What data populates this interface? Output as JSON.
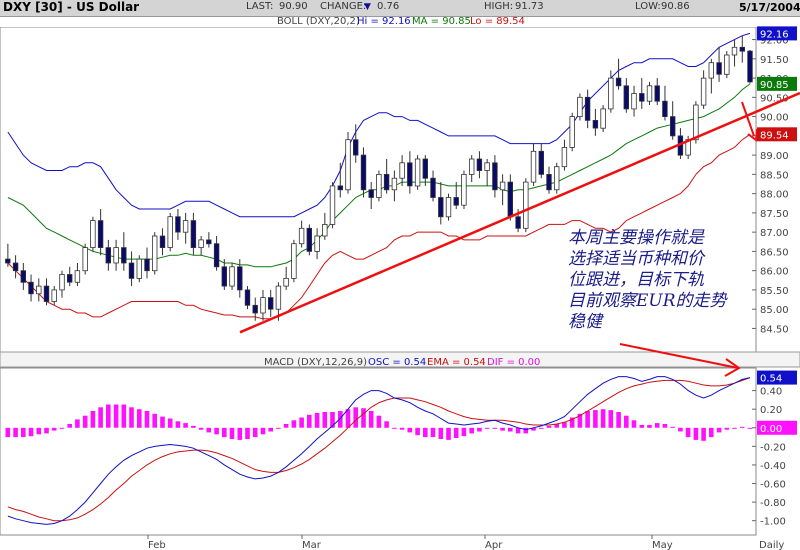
{
  "header": {
    "symbol": "DXY [30] - US Dollar",
    "last_label": "LAST:",
    "last_value": "90.90",
    "change_label": "CHANGE:",
    "change_arrow": "▼",
    "change_value": "0.76",
    "high_label": "HIGH:",
    "high_value": "91.73",
    "low_label": "LOW:",
    "low_value": "90.86",
    "date": "5/17/2004"
  },
  "boll_legend": {
    "name": "BOLL (DXY,20,2)",
    "hi": "Hi = 92.16",
    "ma": "MA = 90.85",
    "lo": "Lo = 89.54"
  },
  "macd_legend": {
    "name": "MACD (DXY,12,26,9)",
    "osc": "OSC = 0.54",
    "ema": "EMA = 0.54",
    "dif": "DIF = 0.00"
  },
  "annotation": "本周主要操作就是\n选择适当币种和价\n位跟进，目标下轨\n目前观察EUR的走势\n稳健",
  "colors": {
    "up_candle": "#ffffff",
    "down_candle": "#0a0a6a",
    "upper_band": "#1010c8",
    "middle_band": "#0a7a0a",
    "lower_band": "#cc1010",
    "trendline": "#ee1010",
    "macd_line": "#1010c8",
    "signal_line": "#cc1010",
    "histogram": "#ff10ff"
  },
  "chart_data": [
    {
      "type": "candlestick",
      "title": "DXY [30] - US Dollar",
      "x_ticks": [
        "Feb",
        "Mar",
        "Apr",
        "May",
        "Daily"
      ],
      "y_ticks": [
        "84.50",
        "85.00",
        "85.50",
        "86.00",
        "86.50",
        "87.00",
        "87.50",
        "88.00",
        "88.50",
        "89.00",
        "89.50",
        "90.00",
        "90.50",
        "91.00",
        "91.50",
        "92.00"
      ],
      "ylim": [
        84.2,
        92.3
      ],
      "price_tags": [
        {
          "label": "92.16",
          "value": 92.16,
          "color": "#1010c8"
        },
        {
          "label": "90.85",
          "value": 90.85,
          "color": "#0a7a0a"
        },
        {
          "label": "89.54",
          "value": 89.54,
          "color": "#cc1010"
        }
      ],
      "ohlc": [
        [
          86.3,
          86.7,
          86.1,
          86.2
        ],
        [
          86.2,
          86.4,
          85.8,
          86.0
        ],
        [
          86.0,
          86.2,
          85.5,
          85.7
        ],
        [
          85.7,
          85.9,
          85.2,
          85.4
        ],
        [
          85.4,
          85.8,
          85.2,
          85.6
        ],
        [
          85.6,
          85.8,
          85.1,
          85.2
        ],
        [
          85.2,
          85.6,
          85.1,
          85.5
        ],
        [
          85.5,
          86.0,
          85.3,
          85.9
        ],
        [
          85.9,
          86.1,
          85.6,
          85.7
        ],
        [
          85.7,
          86.2,
          85.6,
          86.0
        ],
        [
          86.0,
          86.7,
          85.9,
          86.6
        ],
        [
          86.6,
          87.4,
          86.5,
          87.3
        ],
        [
          87.3,
          87.6,
          86.4,
          86.6
        ],
        [
          86.6,
          86.8,
          86.0,
          86.2
        ],
        [
          86.2,
          86.8,
          86.0,
          86.6
        ],
        [
          86.6,
          87.0,
          86.0,
          86.2
        ],
        [
          86.2,
          86.5,
          85.6,
          85.8
        ],
        [
          85.8,
          86.4,
          85.7,
          86.3
        ],
        [
          86.3,
          86.6,
          85.8,
          86.0
        ],
        [
          86.0,
          87.0,
          85.9,
          86.9
        ],
        [
          86.9,
          87.1,
          86.4,
          86.6
        ],
        [
          86.6,
          87.5,
          86.5,
          87.4
        ],
        [
          87.4,
          87.6,
          86.8,
          87.0
        ],
        [
          87.0,
          87.5,
          86.7,
          87.3
        ],
        [
          87.3,
          87.5,
          86.4,
          86.6
        ],
        [
          86.6,
          86.9,
          86.4,
          86.8
        ],
        [
          86.8,
          87.0,
          86.6,
          86.7
        ],
        [
          86.7,
          86.9,
          86.0,
          86.1
        ],
        [
          86.1,
          86.3,
          85.5,
          85.6
        ],
        [
          85.6,
          86.2,
          85.5,
          86.1
        ],
        [
          86.1,
          86.3,
          85.3,
          85.5
        ],
        [
          85.5,
          85.6,
          85.0,
          85.1
        ],
        [
          85.1,
          85.3,
          84.7,
          84.9
        ],
        [
          84.9,
          85.5,
          84.7,
          85.3
        ],
        [
          85.3,
          85.5,
          84.8,
          85.0
        ],
        [
          85.0,
          85.7,
          84.7,
          85.6
        ],
        [
          85.6,
          86.1,
          85.5,
          85.8
        ],
        [
          85.8,
          86.8,
          85.7,
          86.7
        ],
        [
          86.7,
          87.3,
          86.6,
          87.1
        ],
        [
          87.1,
          87.2,
          86.4,
          86.5
        ],
        [
          86.5,
          87.1,
          86.3,
          86.9
        ],
        [
          86.9,
          87.5,
          86.8,
          87.2
        ],
        [
          87.2,
          88.3,
          87.1,
          88.2
        ],
        [
          88.2,
          88.8,
          87.9,
          88.1
        ],
        [
          88.1,
          89.6,
          88.0,
          89.4
        ],
        [
          89.4,
          89.8,
          88.8,
          89.0
        ],
        [
          89.0,
          89.2,
          87.9,
          88.1
        ],
        [
          88.1,
          88.3,
          87.6,
          87.9
        ],
        [
          87.9,
          88.6,
          87.8,
          88.5
        ],
        [
          88.5,
          88.9,
          88.0,
          88.1
        ],
        [
          88.1,
          88.6,
          87.8,
          88.4
        ],
        [
          88.4,
          89.0,
          88.2,
          88.8
        ],
        [
          88.8,
          89.1,
          88.0,
          88.2
        ],
        [
          88.2,
          89.0,
          88.1,
          88.9
        ],
        [
          88.9,
          89.0,
          88.2,
          88.4
        ],
        [
          88.4,
          88.6,
          87.8,
          87.9
        ],
        [
          87.9,
          88.3,
          87.2,
          87.4
        ],
        [
          87.4,
          88.0,
          87.3,
          87.9
        ],
        [
          87.9,
          88.3,
          87.6,
          87.7
        ],
        [
          87.7,
          88.6,
          87.6,
          88.5
        ],
        [
          88.5,
          89.0,
          88.3,
          88.9
        ],
        [
          88.9,
          89.1,
          88.4,
          88.6
        ],
        [
          88.6,
          88.9,
          88.2,
          88.8
        ],
        [
          88.8,
          89.0,
          87.9,
          88.1
        ],
        [
          88.1,
          88.5,
          87.7,
          88.3
        ],
        [
          88.3,
          88.5,
          87.3,
          87.4
        ],
        [
          87.4,
          87.6,
          87.0,
          87.1
        ],
        [
          87.1,
          88.4,
          87.0,
          88.3
        ],
        [
          88.3,
          89.3,
          88.2,
          89.1
        ],
        [
          89.1,
          89.3,
          88.4,
          88.5
        ],
        [
          88.5,
          88.7,
          88.0,
          88.1
        ],
        [
          88.1,
          88.8,
          88.0,
          88.7
        ],
        [
          88.7,
          89.4,
          88.6,
          89.2
        ],
        [
          89.2,
          90.1,
          89.1,
          90.0
        ],
        [
          90.0,
          90.6,
          89.9,
          90.5
        ],
        [
          90.5,
          90.7,
          89.7,
          89.9
        ],
        [
          89.9,
          90.2,
          89.5,
          89.7
        ],
        [
          89.7,
          90.3,
          89.6,
          90.2
        ],
        [
          90.2,
          91.2,
          90.1,
          91.0
        ],
        [
          91.0,
          91.5,
          90.7,
          90.8
        ],
        [
          90.8,
          91.0,
          90.1,
          90.2
        ],
        [
          90.2,
          90.8,
          90.0,
          90.6
        ],
        [
          90.6,
          91.0,
          90.2,
          90.4
        ],
        [
          90.4,
          90.9,
          90.3,
          90.8
        ],
        [
          90.8,
          91.0,
          90.3,
          90.4
        ],
        [
          90.4,
          90.8,
          89.9,
          90.0
        ],
        [
          90.0,
          90.4,
          89.4,
          89.5
        ],
        [
          89.5,
          89.7,
          88.9,
          89.0
        ],
        [
          89.0,
          89.5,
          88.9,
          89.4
        ],
        [
          89.4,
          90.4,
          89.3,
          90.3
        ],
        [
          90.3,
          91.2,
          90.2,
          91.0
        ],
        [
          91.0,
          91.5,
          90.6,
          91.4
        ],
        [
          91.4,
          91.8,
          90.9,
          91.1
        ],
        [
          91.1,
          91.7,
          91.0,
          91.6
        ],
        [
          91.6,
          92.0,
          91.3,
          91.8
        ],
        [
          91.8,
          92.1,
          91.4,
          91.7
        ],
        [
          91.7,
          91.73,
          90.86,
          90.9
        ]
      ],
      "bollinger": {
        "upper": [
          89.6,
          89.3,
          89.0,
          88.8,
          88.7,
          88.6,
          88.6,
          88.6,
          88.7,
          88.7,
          88.8,
          88.8,
          88.7,
          88.4,
          88.1,
          87.9,
          87.7,
          87.6,
          87.6,
          87.6,
          87.6,
          87.6,
          87.7,
          87.8,
          87.8,
          87.8,
          87.8,
          87.7,
          87.6,
          87.5,
          87.4,
          87.4,
          87.4,
          87.4,
          87.4,
          87.4,
          87.4,
          87.4,
          87.5,
          87.6,
          87.7,
          87.9,
          88.2,
          88.6,
          89.2,
          89.6,
          89.9,
          90.0,
          90.1,
          90.1,
          90.0,
          90.0,
          89.9,
          89.9,
          89.8,
          89.7,
          89.6,
          89.5,
          89.5,
          89.5,
          89.5,
          89.5,
          89.5,
          89.5,
          89.4,
          89.3,
          89.3,
          89.3,
          89.3,
          89.3,
          89.3,
          89.4,
          89.6,
          89.8,
          90.1,
          90.4,
          90.6,
          90.8,
          91.0,
          91.2,
          91.3,
          91.4,
          91.4,
          91.5,
          91.5,
          91.5,
          91.5,
          91.4,
          91.3,
          91.3,
          91.4,
          91.6,
          91.8,
          91.9,
          92.0,
          92.1,
          92.16
        ],
        "middle": [
          87.9,
          87.8,
          87.7,
          87.5,
          87.3,
          87.1,
          87.0,
          86.9,
          86.8,
          86.7,
          86.6,
          86.5,
          86.45,
          86.4,
          86.35,
          86.3,
          86.3,
          86.3,
          86.3,
          86.3,
          86.35,
          86.4,
          86.4,
          86.45,
          86.4,
          86.4,
          86.35,
          86.3,
          86.2,
          86.2,
          86.15,
          86.15,
          86.1,
          86.1,
          86.1,
          86.15,
          86.2,
          86.3,
          86.5,
          86.6,
          86.8,
          87.0,
          87.3,
          87.5,
          87.7,
          87.9,
          88.0,
          88.1,
          88.1,
          88.2,
          88.2,
          88.3,
          88.3,
          88.3,
          88.3,
          88.3,
          88.25,
          88.2,
          88.2,
          88.2,
          88.2,
          88.2,
          88.2,
          88.2,
          88.1,
          88.05,
          88.1,
          88.1,
          88.15,
          88.2,
          88.25,
          88.3,
          88.4,
          88.5,
          88.6,
          88.7,
          88.8,
          88.9,
          89.0,
          89.15,
          89.3,
          89.4,
          89.5,
          89.6,
          89.7,
          89.75,
          89.8,
          89.85,
          89.9,
          89.95,
          90.0,
          90.1,
          90.2,
          90.35,
          90.5,
          90.7,
          90.85
        ],
        "lower": [
          86.2,
          86.0,
          85.8,
          85.6,
          85.4,
          85.2,
          85.1,
          85.0,
          85.0,
          84.9,
          84.9,
          84.8,
          84.8,
          84.9,
          85.0,
          85.1,
          85.2,
          85.2,
          85.2,
          85.2,
          85.2,
          85.2,
          85.2,
          85.1,
          85.1,
          85.0,
          84.95,
          84.9,
          84.85,
          84.85,
          84.8,
          84.8,
          84.8,
          84.75,
          84.75,
          84.8,
          84.9,
          85.1,
          85.3,
          85.6,
          85.9,
          86.2,
          86.4,
          86.5,
          86.4,
          86.3,
          86.3,
          86.4,
          86.5,
          86.6,
          86.8,
          86.9,
          86.9,
          87.0,
          87.0,
          87.0,
          87.0,
          86.9,
          86.9,
          86.8,
          86.8,
          86.8,
          86.9,
          86.9,
          86.9,
          86.9,
          86.9,
          86.9,
          87.0,
          87.1,
          87.2,
          87.2,
          87.2,
          87.3,
          87.3,
          87.2,
          87.1,
          87.1,
          87.0,
          87.1,
          87.3,
          87.4,
          87.5,
          87.6,
          87.7,
          87.8,
          87.9,
          88.0,
          88.2,
          88.5,
          88.7,
          88.8,
          89.0,
          89.1,
          89.2,
          89.4,
          89.54
        ]
      },
      "annotations": [
        {
          "type": "trendline",
          "from": {
            "index": 33,
            "value": 84.4
          },
          "to": {
            "index": 112,
            "value": 90.3
          }
        },
        {
          "type": "arrow",
          "label": "to lower band"
        }
      ]
    },
    {
      "type": "macd",
      "title": "MACD (DXY,12,26,9)",
      "y_ticks": [
        "-1.00",
        "-0.80",
        "-0.60",
        "-0.40",
        "-0.20",
        "0.00",
        "0.20",
        "0.40"
      ],
      "ylim": [
        -1.1,
        0.6
      ],
      "price_tags": [
        {
          "label": "0.54",
          "value": 0.54,
          "color": "#1010c8"
        },
        {
          "label": "0.00",
          "value": 0.0,
          "color": "#ff10ff"
        }
      ],
      "macd": [
        -0.95,
        -0.98,
        -1.0,
        -1.02,
        -1.03,
        -1.04,
        -1.03,
        -1.0,
        -0.95,
        -0.88,
        -0.8,
        -0.7,
        -0.6,
        -0.5,
        -0.42,
        -0.35,
        -0.3,
        -0.26,
        -0.22,
        -0.2,
        -0.19,
        -0.18,
        -0.19,
        -0.2,
        -0.22,
        -0.26,
        -0.3,
        -0.34,
        -0.4,
        -0.45,
        -0.5,
        -0.53,
        -0.55,
        -0.54,
        -0.52,
        -0.48,
        -0.42,
        -0.35,
        -0.28,
        -0.2,
        -0.12,
        -0.05,
        0.02,
        0.1,
        0.2,
        0.3,
        0.36,
        0.4,
        0.4,
        0.37,
        0.32,
        0.3,
        0.27,
        0.22,
        0.18,
        0.15,
        0.1,
        0.05,
        0.04,
        0.03,
        0.04,
        0.05,
        0.07,
        0.08,
        0.05,
        0.03,
        0.0,
        -0.02,
        0.0,
        0.02,
        0.05,
        0.08,
        0.12,
        0.2,
        0.28,
        0.36,
        0.42,
        0.48,
        0.52,
        0.55,
        0.55,
        0.53,
        0.5,
        0.52,
        0.55,
        0.55,
        0.52,
        0.47,
        0.4,
        0.35,
        0.32,
        0.35,
        0.4,
        0.44,
        0.48,
        0.52,
        0.54
      ],
      "signal": [
        -0.85,
        -0.88,
        -0.9,
        -0.93,
        -0.96,
        -0.98,
        -1.0,
        -1.0,
        -0.99,
        -0.97,
        -0.93,
        -0.88,
        -0.82,
        -0.75,
        -0.67,
        -0.6,
        -0.52,
        -0.46,
        -0.4,
        -0.35,
        -0.31,
        -0.28,
        -0.26,
        -0.25,
        -0.24,
        -0.24,
        -0.25,
        -0.27,
        -0.3,
        -0.33,
        -0.37,
        -0.41,
        -0.45,
        -0.47,
        -0.48,
        -0.48,
        -0.46,
        -0.43,
        -0.39,
        -0.34,
        -0.28,
        -0.22,
        -0.15,
        -0.08,
        0.0,
        0.08,
        0.15,
        0.22,
        0.27,
        0.3,
        0.32,
        0.32,
        0.32,
        0.3,
        0.28,
        0.25,
        0.22,
        0.18,
        0.15,
        0.12,
        0.1,
        0.09,
        0.08,
        0.08,
        0.08,
        0.07,
        0.06,
        0.04,
        0.03,
        0.03,
        0.03,
        0.04,
        0.06,
        0.09,
        0.13,
        0.18,
        0.23,
        0.28,
        0.33,
        0.38,
        0.42,
        0.45,
        0.47,
        0.49,
        0.5,
        0.51,
        0.51,
        0.51,
        0.5,
        0.48,
        0.46,
        0.45,
        0.45,
        0.46,
        0.48,
        0.51,
        0.54
      ],
      "histogram": [
        -0.1,
        -0.1,
        -0.1,
        -0.09,
        -0.07,
        -0.06,
        -0.03,
        0.0,
        0.04,
        0.09,
        0.13,
        0.18,
        0.22,
        0.25,
        0.25,
        0.25,
        0.22,
        0.2,
        0.18,
        0.15,
        0.12,
        0.1,
        0.07,
        0.05,
        0.02,
        -0.02,
        -0.05,
        -0.07,
        -0.1,
        -0.12,
        -0.13,
        -0.12,
        -0.1,
        -0.07,
        -0.04,
        0.0,
        0.04,
        0.08,
        0.11,
        0.14,
        0.16,
        0.17,
        0.17,
        0.18,
        0.2,
        0.22,
        0.21,
        0.18,
        0.13,
        0.07,
        0.0,
        -0.02,
        -0.05,
        -0.08,
        -0.1,
        -0.1,
        -0.12,
        -0.13,
        -0.11,
        -0.09,
        -0.06,
        -0.04,
        -0.01,
        0.0,
        -0.03,
        -0.04,
        -0.06,
        -0.06,
        -0.03,
        -0.01,
        0.02,
        0.04,
        0.06,
        0.11,
        0.15,
        0.18,
        0.19,
        0.2,
        0.19,
        0.17,
        0.13,
        0.08,
        0.03,
        0.03,
        0.05,
        0.04,
        0.01,
        -0.04,
        -0.1,
        -0.13,
        -0.14,
        -0.1,
        -0.05,
        -0.02,
        0.0,
        0.01,
        0.0
      ]
    }
  ]
}
